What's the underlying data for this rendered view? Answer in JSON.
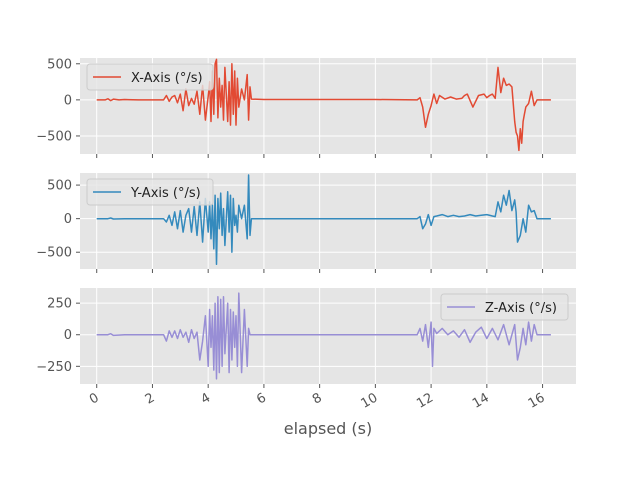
{
  "chart_data": [
    {
      "type": "line",
      "ylim": [
        -750,
        580
      ],
      "yticks": [
        500,
        0,
        -500
      ],
      "series": [
        {
          "name": "X-Axis (°/s)",
          "color": "#E24A33",
          "x": [
            0,
            0.3,
            0.4,
            0.5,
            0.6,
            0.8,
            1.0,
            1.5,
            2.0,
            2.4,
            2.5,
            2.6,
            2.7,
            2.8,
            2.9,
            3.0,
            3.1,
            3.2,
            3.3,
            3.4,
            3.5,
            3.6,
            3.7,
            3.8,
            3.9,
            4.0,
            4.05,
            4.1,
            4.15,
            4.2,
            4.25,
            4.3,
            4.35,
            4.4,
            4.45,
            4.5,
            4.55,
            4.6,
            4.7,
            4.75,
            4.8,
            4.85,
            4.9,
            4.95,
            5.0,
            5.05,
            5.1,
            5.2,
            5.3,
            5.4,
            5.45,
            5.5,
            5.55,
            6,
            8,
            10,
            11.5,
            11.6,
            11.7,
            11.8,
            11.9,
            12.0,
            12.1,
            12.2,
            12.3,
            12.5,
            12.7,
            12.9,
            13.1,
            13.2,
            13.3,
            13.5,
            13.7,
            13.9,
            14.0,
            14.1,
            14.2,
            14.3,
            14.4,
            14.5,
            14.6,
            14.7,
            14.8,
            14.9,
            15.0,
            15.05,
            15.1,
            15.15,
            15.2,
            15.25,
            15.3,
            15.35,
            15.4,
            15.5,
            15.6,
            15.7,
            15.8,
            16.0,
            16.3
          ],
          "y": [
            0,
            0,
            15,
            -10,
            10,
            0,
            5,
            0,
            0,
            0,
            60,
            -20,
            40,
            60,
            -40,
            80,
            -150,
            150,
            -80,
            20,
            -60,
            120,
            -200,
            200,
            -280,
            50,
            250,
            -300,
            400,
            -200,
            500,
            560,
            -250,
            300,
            -100,
            200,
            -280,
            450,
            -300,
            250,
            -350,
            500,
            -200,
            400,
            -350,
            300,
            -100,
            150,
            0,
            350,
            -280,
            180,
            10,
            5,
            5,
            5,
            0,
            30,
            -100,
            -380,
            -200,
            -80,
            80,
            -50,
            60,
            10,
            40,
            10,
            20,
            60,
            80,
            -100,
            60,
            80,
            30,
            60,
            80,
            20,
            450,
            100,
            300,
            200,
            220,
            180,
            -300,
            -450,
            -500,
            -700,
            -400,
            -600,
            -300,
            -200,
            -100,
            -50,
            120,
            -80,
            0,
            0,
            0
          ]
        }
      ]
    },
    {
      "type": "line",
      "ylim": [
        -750,
        680
      ],
      "yticks": [
        500,
        0,
        -500
      ],
      "series": [
        {
          "name": "Y-Axis (°/s)",
          "color": "#348ABD",
          "x": [
            0,
            0.4,
            0.5,
            0.6,
            1.0,
            2.0,
            2.4,
            2.5,
            2.6,
            2.7,
            2.8,
            2.9,
            3.0,
            3.1,
            3.2,
            3.3,
            3.4,
            3.5,
            3.6,
            3.7,
            3.8,
            3.9,
            4.0,
            4.05,
            4.1,
            4.15,
            4.2,
            4.25,
            4.3,
            4.35,
            4.4,
            4.45,
            4.5,
            4.55,
            4.6,
            4.7,
            4.75,
            4.8,
            4.85,
            4.9,
            4.95,
            5.0,
            5.05,
            5.1,
            5.2,
            5.3,
            5.4,
            5.45,
            5.5,
            5.55,
            6,
            8,
            10,
            11.5,
            11.6,
            11.7,
            11.8,
            11.9,
            12.0,
            12.1,
            12.2,
            12.4,
            12.6,
            12.8,
            13.0,
            13.2,
            13.4,
            13.6,
            13.8,
            14.0,
            14.2,
            14.3,
            14.4,
            14.5,
            14.6,
            14.7,
            14.8,
            14.9,
            15.0,
            15.05,
            15.1,
            15.2,
            15.3,
            15.4,
            15.5,
            15.6,
            15.7,
            15.8,
            16.0,
            16.3
          ],
          "y": [
            0,
            0,
            10,
            -5,
            0,
            0,
            0,
            -50,
            50,
            -100,
            100,
            -150,
            120,
            -200,
            50,
            150,
            -200,
            180,
            -250,
            250,
            -350,
            300,
            -200,
            250,
            -300,
            200,
            -450,
            350,
            -680,
            300,
            -150,
            380,
            -250,
            150,
            -400,
            400,
            -200,
            350,
            -500,
            300,
            -100,
            50,
            -200,
            200,
            0,
            200,
            -300,
            650,
            -250,
            0,
            0,
            0,
            0,
            0,
            30,
            -150,
            -80,
            60,
            -100,
            30,
            40,
            60,
            30,
            50,
            30,
            40,
            60,
            40,
            50,
            60,
            40,
            30,
            250,
            100,
            350,
            200,
            420,
            120,
            280,
            100,
            -350,
            -250,
            0,
            -200,
            200,
            100,
            120,
            0,
            0,
            0
          ]
        }
      ]
    },
    {
      "type": "line",
      "ylim": [
        -390,
        370
      ],
      "yticks": [
        250,
        0,
        -250
      ],
      "series": [
        {
          "name": "Z-Axis (°/s)",
          "color": "#988ED5",
          "x": [
            0,
            0.4,
            0.5,
            0.6,
            1.0,
            2.0,
            2.4,
            2.5,
            2.6,
            2.7,
            2.8,
            2.9,
            3.0,
            3.1,
            3.2,
            3.3,
            3.4,
            3.5,
            3.6,
            3.7,
            3.8,
            3.9,
            4.0,
            4.05,
            4.1,
            4.15,
            4.2,
            4.25,
            4.3,
            4.35,
            4.4,
            4.45,
            4.5,
            4.55,
            4.6,
            4.7,
            4.75,
            4.8,
            4.85,
            4.9,
            4.95,
            5.0,
            5.05,
            5.1,
            5.2,
            5.3,
            5.4,
            5.45,
            5.5,
            5.55,
            6,
            8,
            10,
            11.5,
            11.6,
            11.7,
            11.8,
            11.9,
            12.0,
            12.05,
            12.1,
            12.2,
            12.4,
            12.6,
            12.8,
            13.0,
            13.2,
            13.4,
            13.6,
            13.8,
            14.0,
            14.2,
            14.4,
            14.6,
            14.8,
            15.0,
            15.1,
            15.2,
            15.3,
            15.4,
            15.5,
            15.6,
            15.7,
            15.8,
            16.0,
            16.3
          ],
          "y": [
            0,
            0,
            8,
            -5,
            0,
            0,
            0,
            -50,
            30,
            -20,
            30,
            -30,
            40,
            -20,
            20,
            -60,
            40,
            -30,
            20,
            -200,
            -50,
            150,
            -250,
            200,
            -100,
            150,
            -280,
            250,
            -350,
            300,
            -300,
            280,
            -250,
            300,
            -150,
            250,
            -300,
            200,
            -200,
            180,
            -100,
            150,
            -250,
            330,
            -300,
            200,
            -250,
            50,
            0,
            0,
            0,
            0,
            0,
            0,
            50,
            -50,
            80,
            -100,
            100,
            -250,
            50,
            10,
            50,
            0,
            30,
            -20,
            40,
            -60,
            20,
            60,
            -30,
            50,
            -40,
            80,
            -80,
            80,
            -200,
            -100,
            50,
            -80,
            100,
            -50,
            80,
            0,
            0,
            0
          ]
        }
      ]
    }
  ],
  "xaxis": {
    "label": "elapsed (s)",
    "xlim": [
      -0.6,
      17.2
    ],
    "ticks": [
      0,
      2,
      4,
      6,
      8,
      10,
      12,
      14,
      16
    ]
  },
  "style": {
    "axes_bg": "#E5E5E5",
    "grid": "#FFFFFF",
    "tick_color": "#555555"
  }
}
